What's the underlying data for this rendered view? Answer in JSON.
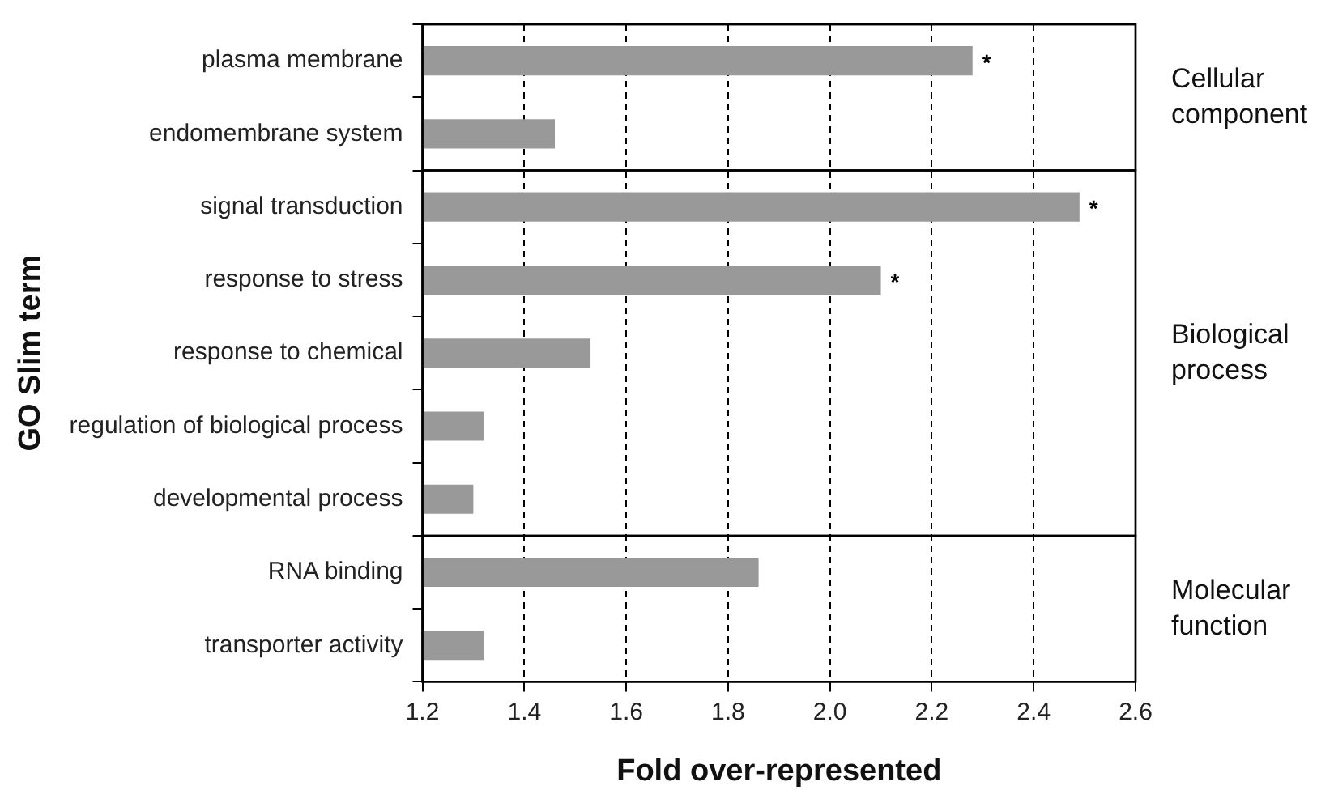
{
  "chart_data": {
    "type": "bar",
    "orientation": "horizontal",
    "xlabel": "Fold over-represented",
    "ylabel": "GO Slim term",
    "categories": [
      "plasma membrane",
      "endomembrane system",
      "signal transduction",
      "response to stress",
      "response to chemical",
      "regulation of biological process",
      "developmental process",
      "RNA binding",
      "transporter activity"
    ],
    "values": [
      2.28,
      1.46,
      2.49,
      2.1,
      1.53,
      1.32,
      1.3,
      1.86,
      1.32
    ],
    "color": "#999999",
    "xlim": [
      1.2,
      2.6
    ],
    "xticks": [
      {
        "value": 1.2,
        "label": "1.2"
      },
      {
        "value": 1.4,
        "label": "1.4"
      },
      {
        "value": 1.6,
        "label": "1.6"
      },
      {
        "value": 1.8,
        "label": "1.8"
      },
      {
        "value": 2.0,
        "label": "2.0"
      },
      {
        "value": 2.2,
        "label": "2.2"
      },
      {
        "value": 2.4,
        "label": "2.4"
      },
      {
        "value": 2.6,
        "label": "2.6"
      }
    ],
    "grid": "x",
    "legend": false,
    "annotations": [
      "Cellular component",
      "Biological process",
      "Molecular function",
      {
        "text": "*",
        "x": 2.28,
        "y": "plasma membrane"
      },
      {
        "text": "*",
        "x": 2.49,
        "y": "signal transduction"
      },
      {
        "text": "*",
        "x": 2.1,
        "y": "response to stress"
      }
    ]
  }
}
